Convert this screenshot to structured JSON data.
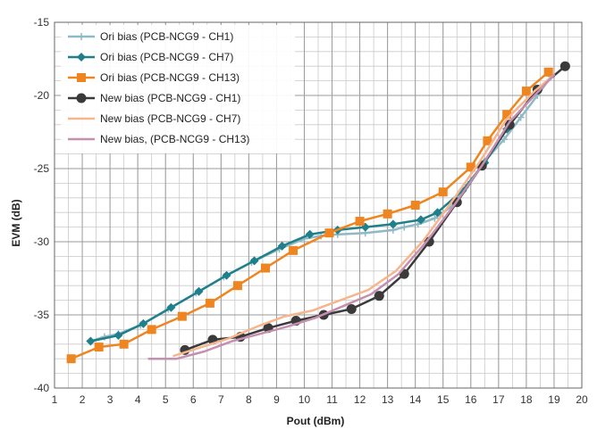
{
  "chart_data": {
    "type": "line",
    "title": "",
    "xlabel": "Pout (dBm)",
    "ylabel": "EVM (dB)",
    "xlim": [
      1,
      20
    ],
    "ylim": [
      -40,
      -15
    ],
    "xticks": [
      1,
      2,
      3,
      4,
      5,
      6,
      7,
      8,
      9,
      10,
      11,
      12,
      13,
      14,
      15,
      16,
      17,
      18,
      19,
      20
    ],
    "yticks": [
      -40,
      -35,
      -30,
      -25,
      -20,
      -15
    ],
    "ytick_labels": [
      "-40",
      "-35",
      "-30",
      "-25",
      "-20",
      "-15"
    ],
    "grid": true,
    "legend_position": "top-left",
    "series": [
      {
        "name": "Ori bias (PCB-NCG9 - CH1)",
        "color": "#8fb9c4",
        "marker": "plus",
        "x": [
          2.3,
          2.8,
          3.3,
          4.1,
          5.1,
          6.1,
          7.1,
          8.1,
          9.1,
          10.0,
          10.6,
          11.2,
          12.2,
          13.2,
          13.6,
          14.1,
          14.7,
          15.3,
          15.9,
          16.5,
          17.2,
          17.8,
          18.4,
          18.9
        ],
        "y": [
          -36.8,
          -36.5,
          -36.3,
          -35.7,
          -34.6,
          -33.5,
          -32.4,
          -31.4,
          -30.5,
          -29.8,
          -29.6,
          -29.5,
          -29.4,
          -29.2,
          -29.0,
          -28.8,
          -28.4,
          -27.6,
          -26.1,
          -24.5,
          -23.0,
          -21.5,
          -20.0,
          -18.7
        ]
      },
      {
        "name": "Ori bias (PCB-NCG9 - CH7)",
        "color": "#1f7f8a",
        "marker": "diamond",
        "x": [
          2.3,
          3.3,
          4.2,
          5.2,
          6.2,
          7.2,
          8.2,
          9.2,
          10.2,
          11.2,
          12.2,
          13.2,
          14.2,
          14.8,
          15.7,
          16.5,
          17.3
        ],
        "y": [
          -36.8,
          -36.4,
          -35.6,
          -34.5,
          -33.4,
          -32.3,
          -31.3,
          -30.3,
          -29.5,
          -29.2,
          -29.0,
          -28.8,
          -28.5,
          -28.0,
          -26.5,
          -24.6,
          -22.3
        ]
      },
      {
        "name": "Ori bias (PCB-NCG9 - CH13)",
        "color": "#ee8521",
        "marker": "square",
        "x": [
          1.6,
          2.6,
          3.5,
          4.5,
          5.6,
          6.6,
          7.6,
          8.6,
          9.6,
          10.9,
          12.0,
          13.0,
          14.0,
          15.0,
          16.0,
          16.6,
          17.3,
          18.0,
          18.8
        ],
        "y": [
          -38.0,
          -37.2,
          -37.0,
          -36.0,
          -35.1,
          -34.2,
          -33.0,
          -31.8,
          -30.6,
          -29.4,
          -28.6,
          -28.1,
          -27.5,
          -26.6,
          -24.9,
          -23.1,
          -21.3,
          -19.7,
          -18.4
        ]
      },
      {
        "name": "New bias (PCB-NCG9 - CH1)",
        "color": "#3a3a3a",
        "marker": "circle",
        "x": [
          5.7,
          6.7,
          7.7,
          8.7,
          9.7,
          10.7,
          11.7,
          12.7,
          13.6,
          14.5,
          15.5,
          16.4,
          17.4,
          18.4,
          19.4
        ],
        "y": [
          -37.4,
          -36.7,
          -36.5,
          -35.9,
          -35.4,
          -35.0,
          -34.6,
          -33.7,
          -32.2,
          -30.0,
          -27.3,
          -24.8,
          -22.0,
          -19.6,
          -18.0
        ]
      },
      {
        "name": "New bias (PCB-NCG9 - CH7)",
        "color": "#f7b58e",
        "marker": "none",
        "x": [
          5.3,
          6.3,
          7.3,
          8.3,
          9.3,
          10.3,
          11.3,
          12.3,
          13.3,
          14.3,
          15.3,
          16.3,
          17.3,
          18.3,
          19.0
        ],
        "y": [
          -37.8,
          -37.2,
          -36.6,
          -35.8,
          -35.1,
          -34.7,
          -34.0,
          -33.3,
          -32.0,
          -29.9,
          -27.3,
          -24.6,
          -21.6,
          -19.7,
          -18.6
        ]
      },
      {
        "name": "New bias, (PCB-NCG9 - CH13)",
        "color": "#c58faf",
        "marker": "none",
        "x": [
          4.4,
          5.4,
          6.4,
          7.4,
          8.4,
          9.4,
          10.4,
          11.4,
          12.4,
          13.4,
          14.4,
          15.4,
          16.4,
          17.4,
          18.4,
          19.0
        ],
        "y": [
          -38.0,
          -38.0,
          -37.5,
          -36.8,
          -36.3,
          -35.8,
          -35.2,
          -34.4,
          -33.6,
          -32.2,
          -30.0,
          -27.5,
          -24.8,
          -21.8,
          -19.8,
          -18.6
        ]
      }
    ]
  }
}
